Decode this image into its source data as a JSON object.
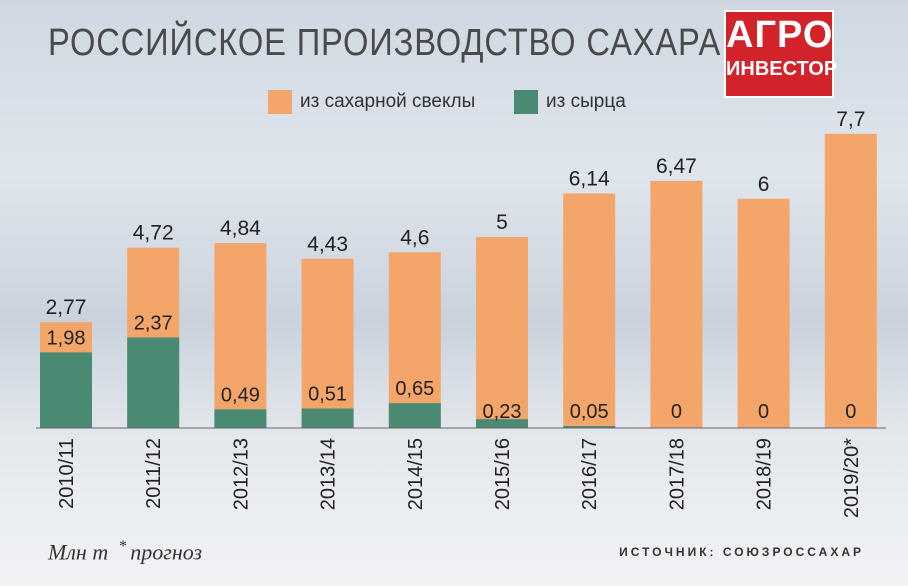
{
  "logo": {
    "line1": "АГРО",
    "line2": "ИНВЕСТОР",
    "color": "#d2232a"
  },
  "footnote": {
    "units": "Млн т",
    "star": "*",
    "forecast": "прогноз"
  },
  "source": "ИСТОЧНИК: СОЮЗРОССАХАР",
  "chart_data": {
    "type": "bar",
    "stacked": true,
    "title": "РОССИЙСКОЕ ПРОИЗВОДСТВО САХАРА",
    "categories": [
      "2010/11",
      "2011/12",
      "2012/13",
      "2013/14",
      "2014/15",
      "2015/16",
      "2016/17",
      "2017/18",
      "2018/19",
      "2019/20*"
    ],
    "series": [
      {
        "name": "из сахарной свеклы",
        "values": [
          2.77,
          4.72,
          4.84,
          4.43,
          4.6,
          5,
          6.14,
          6.47,
          6,
          7.7
        ],
        "color": "#f4a66a"
      },
      {
        "name": "из сырца",
        "values": [
          1.98,
          2.37,
          0.49,
          0.51,
          0.65,
          0.23,
          0.05,
          0,
          0,
          0
        ],
        "color": "#4a8a73"
      }
    ],
    "labels_beet": [
      "2,77",
      "4,72",
      "4,84",
      "4,43",
      "4,6",
      "5",
      "6,14",
      "6,47",
      "6",
      "7,7"
    ],
    "labels_raw": [
      "1,98",
      "2,37",
      "0,49",
      "0,51",
      "0,65",
      "0,23",
      "0,05",
      "0",
      "0",
      "0"
    ],
    "ylabel": "Млн т",
    "legend_position": "top-center",
    "grid": false
  }
}
